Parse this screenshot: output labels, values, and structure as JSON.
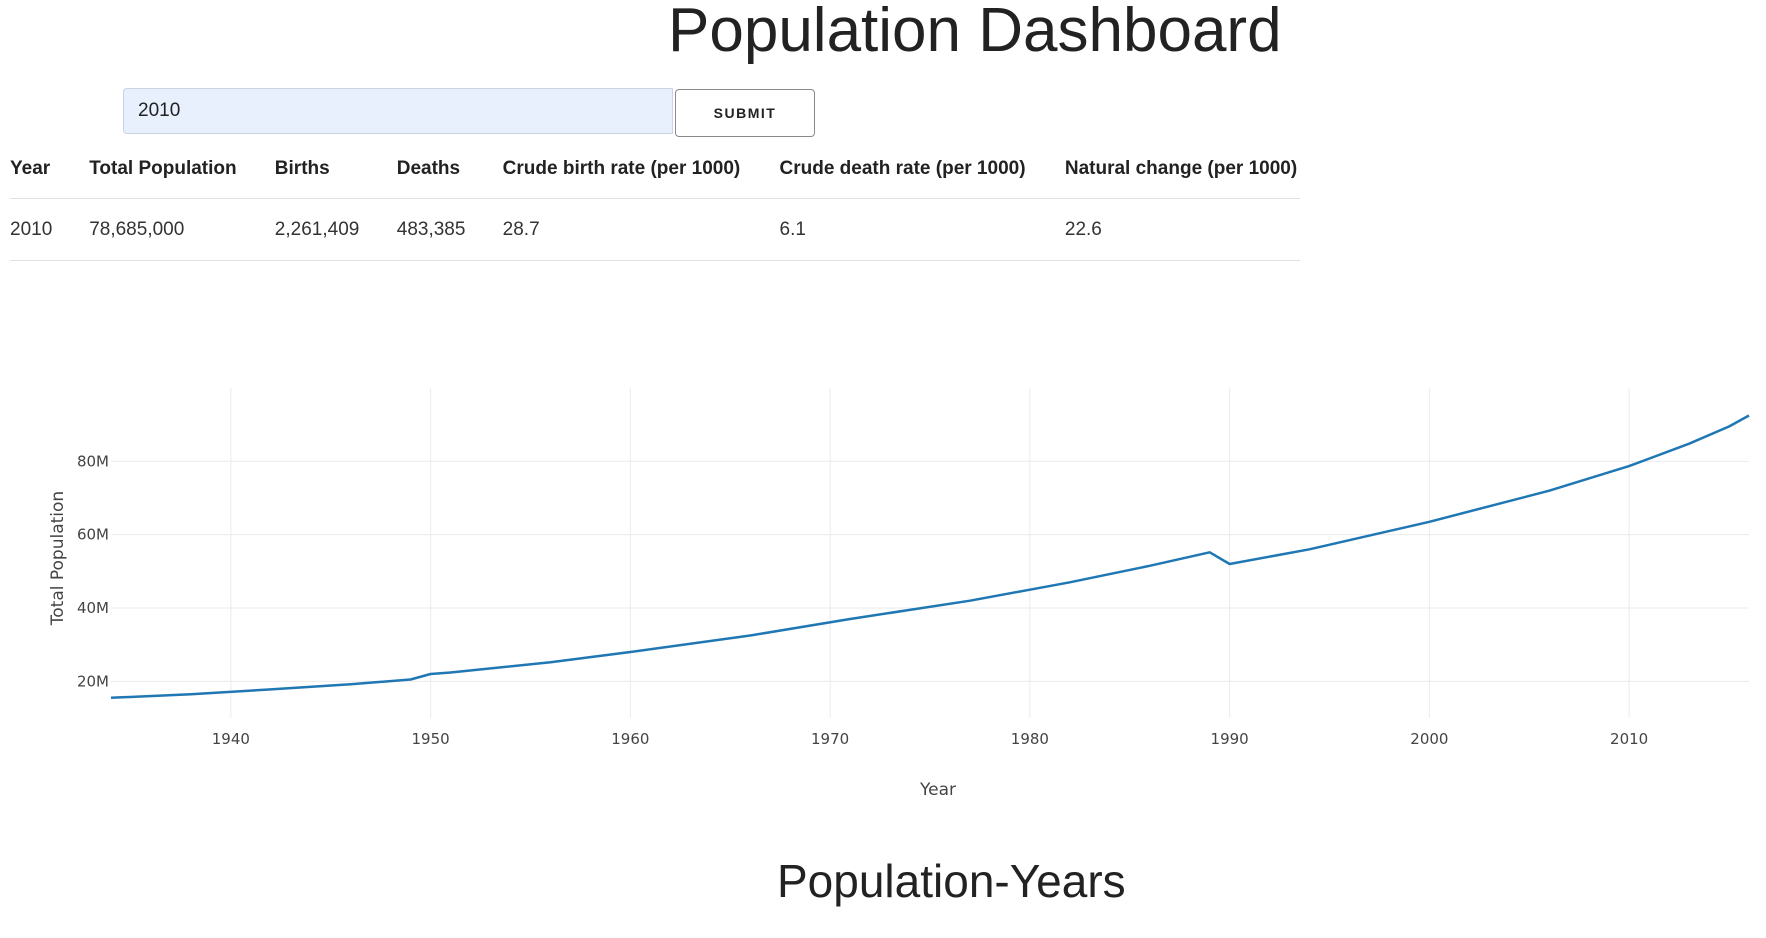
{
  "header": {
    "title": "Population Dashboard"
  },
  "search": {
    "value": "2010",
    "submit_label": "SUBMIT"
  },
  "table": {
    "columns": [
      "Year",
      "Total Population",
      "Births",
      "Deaths",
      "Crude birth rate (per 1000)",
      "Crude death rate (per 1000)",
      "Natural change (per 1000)"
    ],
    "rows": [
      [
        "2010",
        "78,685,000",
        "2,261,409",
        "483,385",
        "28.7",
        "6.1",
        "22.6"
      ]
    ]
  },
  "chart_data": {
    "type": "line",
    "title": "Population-Years",
    "xlabel": "Year",
    "ylabel": "Total Population",
    "xlim": [
      1934,
      2016
    ],
    "ylim": [
      10000000,
      100000000
    ],
    "grid": true,
    "x_ticks": [
      1940,
      1950,
      1960,
      1970,
      1980,
      1990,
      2000,
      2010
    ],
    "x_tick_labels": [
      "1940",
      "1950",
      "1960",
      "1970",
      "1980",
      "1990",
      "2000",
      "2010"
    ],
    "y_ticks": [
      20000000,
      40000000,
      60000000,
      80000000
    ],
    "y_tick_labels": [
      "20M",
      "40M",
      "60M",
      "80M"
    ],
    "line_color": "#1f77b4",
    "series": [
      {
        "x": [
          1934,
          1938,
          1942,
          1946,
          1949,
          1950,
          1951,
          1956,
          1960,
          1966,
          1971,
          1977,
          1982,
          1986,
          1989,
          1990,
          1994,
          2000,
          2006,
          2010,
          2013,
          2015,
          2016
        ],
        "values": [
          15500000,
          16500000,
          17800000,
          19200000,
          20500000,
          22000000,
          22400000,
          25200000,
          28000000,
          32500000,
          37000000,
          42000000,
          47000000,
          51500000,
          55200000,
          52000000,
          56000000,
          63500000,
          72000000,
          78700000,
          84800000,
          89500000,
          92500000
        ]
      }
    ]
  }
}
